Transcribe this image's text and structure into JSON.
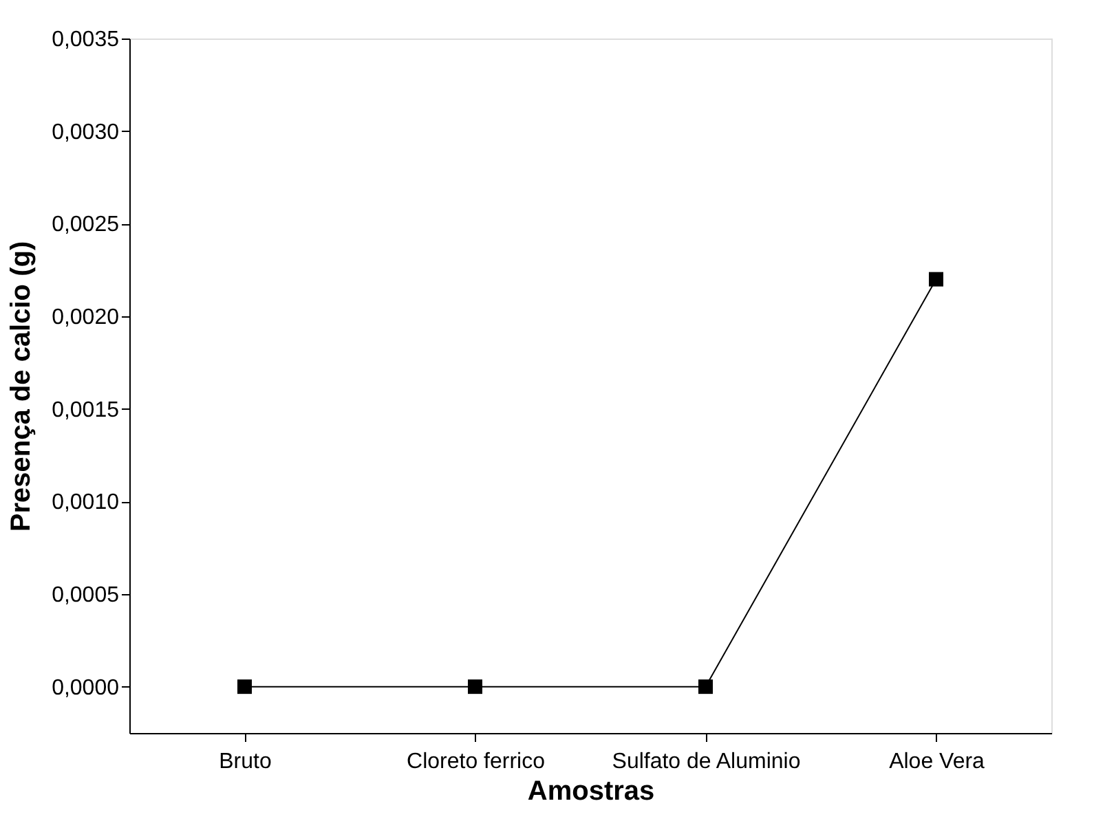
{
  "chart_data": {
    "type": "line",
    "xlabel": "Amostras",
    "ylabel": "Presença de calcio (g)",
    "categories": [
      "Bruto",
      "Cloreto ferrico",
      "Sulfato de Aluminio",
      "Aloe Vera"
    ],
    "series": [
      {
        "color": "#000000",
        "values": [
          0,
          0,
          0,
          0.0022
        ]
      }
    ],
    "ylim": [
      -0.00025,
      0.0035
    ],
    "yticks": [
      {
        "value": 0,
        "label": "0,0000"
      },
      {
        "value": 0.0005,
        "label": "0,0005"
      },
      {
        "value": 0.001,
        "label": "0,0010"
      },
      {
        "value": 0.0015,
        "label": "0,0015"
      },
      {
        "value": 0.002,
        "label": "0,0020"
      },
      {
        "value": 0.0025,
        "label": "0,0025"
      },
      {
        "value": 0.003,
        "label": "0,0030"
      },
      {
        "value": 0.0035,
        "label": "0,0035"
      }
    ],
    "marker": "square",
    "line_style": "solid",
    "grid": false
  }
}
